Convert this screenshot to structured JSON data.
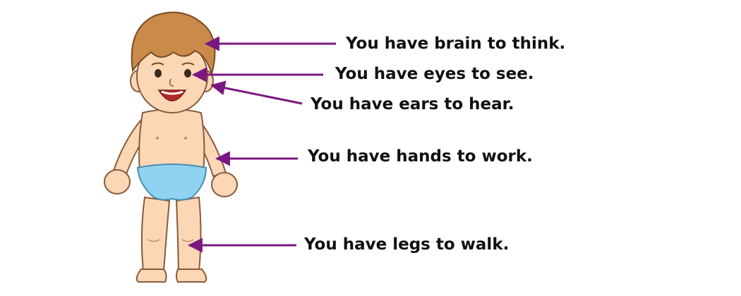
{
  "labels": {
    "brain": "You have brain to think.",
    "eyes": "You have eyes to see.",
    "ears": "You have ears to hear.",
    "hands": "You have hands to work.",
    "legs": "You have legs to walk."
  },
  "illustration": {
    "subject": "boy-body-parts",
    "arrow_color": "#7a1780",
    "skin_color": "#fbd7b6",
    "hair_color": "#c98a4a",
    "diaper_color": "#8fd2f2"
  }
}
